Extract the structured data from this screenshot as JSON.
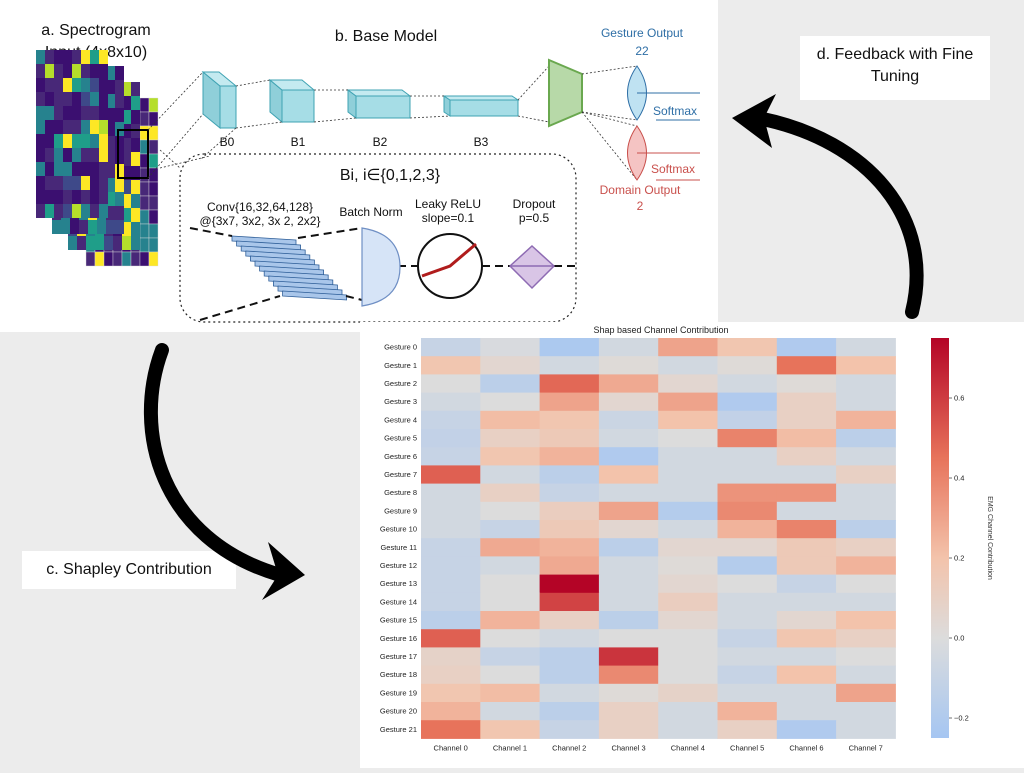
{
  "labels": {
    "spectrogram": "a. Spectrogram",
    "spectrogram_sub": "Input (4x8x10)",
    "base_model": "b. Base Model",
    "shapley": "c. Shapley Contribution",
    "feedback": "d. Feedback with Fine",
    "feedback_sub": "Tuning"
  },
  "model": {
    "blocks": [
      "B0",
      "B1",
      "B2",
      "B3"
    ],
    "block_title": "Bi, i∈{0,1,2,3}",
    "conv_line1": "Conv{16,32,64,128}",
    "conv_line2": "@{3x7, 3x2, 3x 2, 2x2}",
    "batch_norm": "Batch Norm",
    "relu_line1": "Leaky ReLU",
    "relu_line2": "slope=0.1",
    "dropout_line1": "Dropout",
    "dropout_line2": "p=0.5",
    "gesture_output": "Gesture Output",
    "gesture_count": "22",
    "domain_output": "Domain Output",
    "domain_count": "2",
    "softmax": "Softmax"
  },
  "colors": {
    "block_face": "#a6dde6",
    "block_edge": "#3fa3b3",
    "head_fill": "#b7d9a8",
    "head_edge": "#6aa84f",
    "gesture_color": "#2f6fa6",
    "domain_color": "#c9504c"
  },
  "chart_data": {
    "type": "heatmap",
    "title": "Shap based Channel Contribution",
    "colorbar_label": "EMG Channel Contribution",
    "colorbar_ticks": [
      -0.2,
      0.0,
      0.2,
      0.4,
      0.6
    ],
    "vmin": -0.25,
    "vmax": 0.75,
    "columns": [
      "Channel 0",
      "Channel 1",
      "Channel 2",
      "Channel 3",
      "Channel 4",
      "Channel 5",
      "Channel 6",
      "Channel 7"
    ],
    "rows": [
      "Gesture 0",
      "Gesture 1",
      "Gesture 2",
      "Gesture 3",
      "Gesture 4",
      "Gesture 5",
      "Gesture 6",
      "Gesture 7",
      "Gesture 8",
      "Gesture 9",
      "Gesture 10",
      "Gesture 11",
      "Gesture 12",
      "Gesture 13",
      "Gesture 14",
      "Gesture 15",
      "Gesture 16",
      "Gesture 17",
      "Gesture 18",
      "Gesture 19",
      "Gesture 20",
      "Gesture 21"
    ],
    "values": [
      [
        -0.1,
        -0.02,
        -0.22,
        -0.05,
        0.3,
        0.18,
        -0.2,
        -0.05
      ],
      [
        0.18,
        0.05,
        -0.05,
        0.02,
        -0.05,
        0.02,
        0.45,
        0.2
      ],
      [
        0.0,
        -0.15,
        0.48,
        0.28,
        0.05,
        -0.05,
        0.02,
        -0.05
      ],
      [
        -0.05,
        0.0,
        0.3,
        0.05,
        0.3,
        -0.2,
        0.1,
        -0.05
      ],
      [
        -0.1,
        0.22,
        0.18,
        -0.08,
        0.2,
        -0.12,
        0.1,
        0.25
      ],
      [
        -0.12,
        0.1,
        0.15,
        -0.05,
        0.0,
        0.4,
        0.22,
        -0.15
      ],
      [
        -0.1,
        0.18,
        0.25,
        -0.2,
        -0.05,
        -0.05,
        0.1,
        -0.05
      ],
      [
        0.5,
        -0.05,
        -0.15,
        0.2,
        -0.05,
        -0.05,
        -0.05,
        0.1
      ],
      [
        -0.05,
        0.1,
        -0.1,
        -0.05,
        -0.05,
        0.35,
        0.35,
        -0.05
      ],
      [
        -0.05,
        0.0,
        0.12,
        0.3,
        -0.18,
        0.38,
        -0.05,
        -0.05
      ],
      [
        -0.05,
        -0.1,
        0.15,
        0.05,
        -0.05,
        0.25,
        0.4,
        -0.15
      ],
      [
        -0.1,
        0.28,
        0.25,
        -0.15,
        0.05,
        0.05,
        0.15,
        0.1
      ],
      [
        -0.1,
        -0.05,
        0.28,
        -0.05,
        0.02,
        -0.18,
        0.15,
        0.25
      ],
      [
        -0.1,
        0.0,
        0.75,
        -0.05,
        0.05,
        0.0,
        -0.1,
        0.0
      ],
      [
        -0.1,
        0.0,
        0.58,
        -0.05,
        0.12,
        -0.05,
        -0.05,
        -0.05
      ],
      [
        -0.15,
        0.25,
        0.1,
        -0.15,
        0.05,
        -0.05,
        0.05,
        0.2
      ],
      [
        0.5,
        0.0,
        -0.05,
        0.0,
        0.0,
        -0.1,
        0.18,
        0.1
      ],
      [
        0.08,
        -0.1,
        -0.15,
        0.62,
        0.0,
        -0.05,
        -0.05,
        0.0
      ],
      [
        0.1,
        0.0,
        -0.15,
        0.38,
        0.0,
        -0.1,
        0.2,
        -0.05
      ],
      [
        0.18,
        0.22,
        -0.05,
        0.02,
        0.08,
        -0.05,
        -0.05,
        0.3
      ],
      [
        0.25,
        -0.05,
        -0.15,
        0.1,
        -0.05,
        0.25,
        -0.05,
        -0.05
      ],
      [
        0.45,
        0.18,
        -0.1,
        0.1,
        -0.05,
        0.1,
        -0.2,
        -0.05
      ]
    ]
  }
}
